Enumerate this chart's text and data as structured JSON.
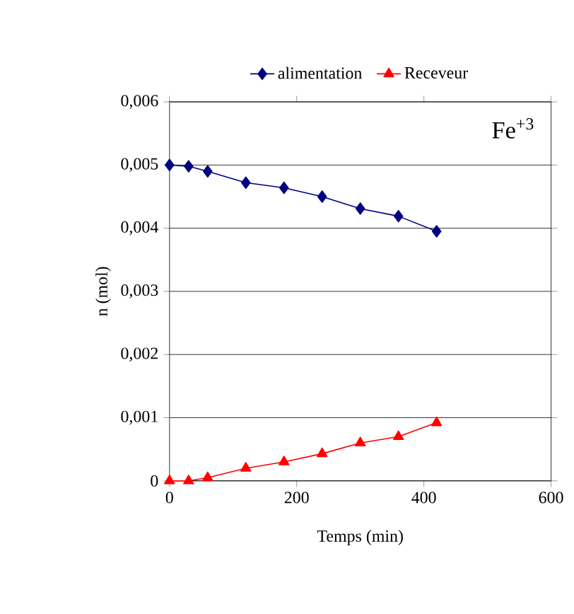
{
  "chart_data": {
    "type": "line",
    "xlabel": "Temps (min)",
    "ylabel": "n (mol)",
    "annotations": [
      "Fe$^{+3}$"
    ],
    "x": [
      0,
      30,
      60,
      120,
      180,
      240,
      300,
      360,
      420
    ],
    "series": [
      {
        "name": "alimentation",
        "color": "#000080",
        "marker": "diamond",
        "values": [
          0.005,
          0.00498,
          0.0049,
          0.00472,
          0.00464,
          0.0045,
          0.00431,
          0.00419,
          0.00395
        ]
      },
      {
        "name": "Receveur",
        "color": "#ff0000",
        "marker": "triangle",
        "values": [
          0,
          0,
          5e-05,
          0.0002,
          0.0003,
          0.00043,
          0.0006,
          0.0007,
          0.00092
        ]
      }
    ],
    "xlim": [
      0,
      600
    ],
    "xticks": [
      0,
      200,
      400,
      600
    ],
    "ylim": [
      0,
      0.006
    ],
    "yticks": [
      {
        "value": 0,
        "label": "0"
      },
      {
        "value": 0.001,
        "label": "0,001"
      },
      {
        "value": 0.002,
        "label": "0,002"
      },
      {
        "value": 0.003,
        "label": "0,003"
      },
      {
        "value": 0.004,
        "label": "0,004"
      },
      {
        "value": 0.005,
        "label": "0,005"
      },
      {
        "value": 0.006,
        "label": "0,006"
      }
    ],
    "grid": "y",
    "legend": "top",
    "line_style": "solid"
  }
}
